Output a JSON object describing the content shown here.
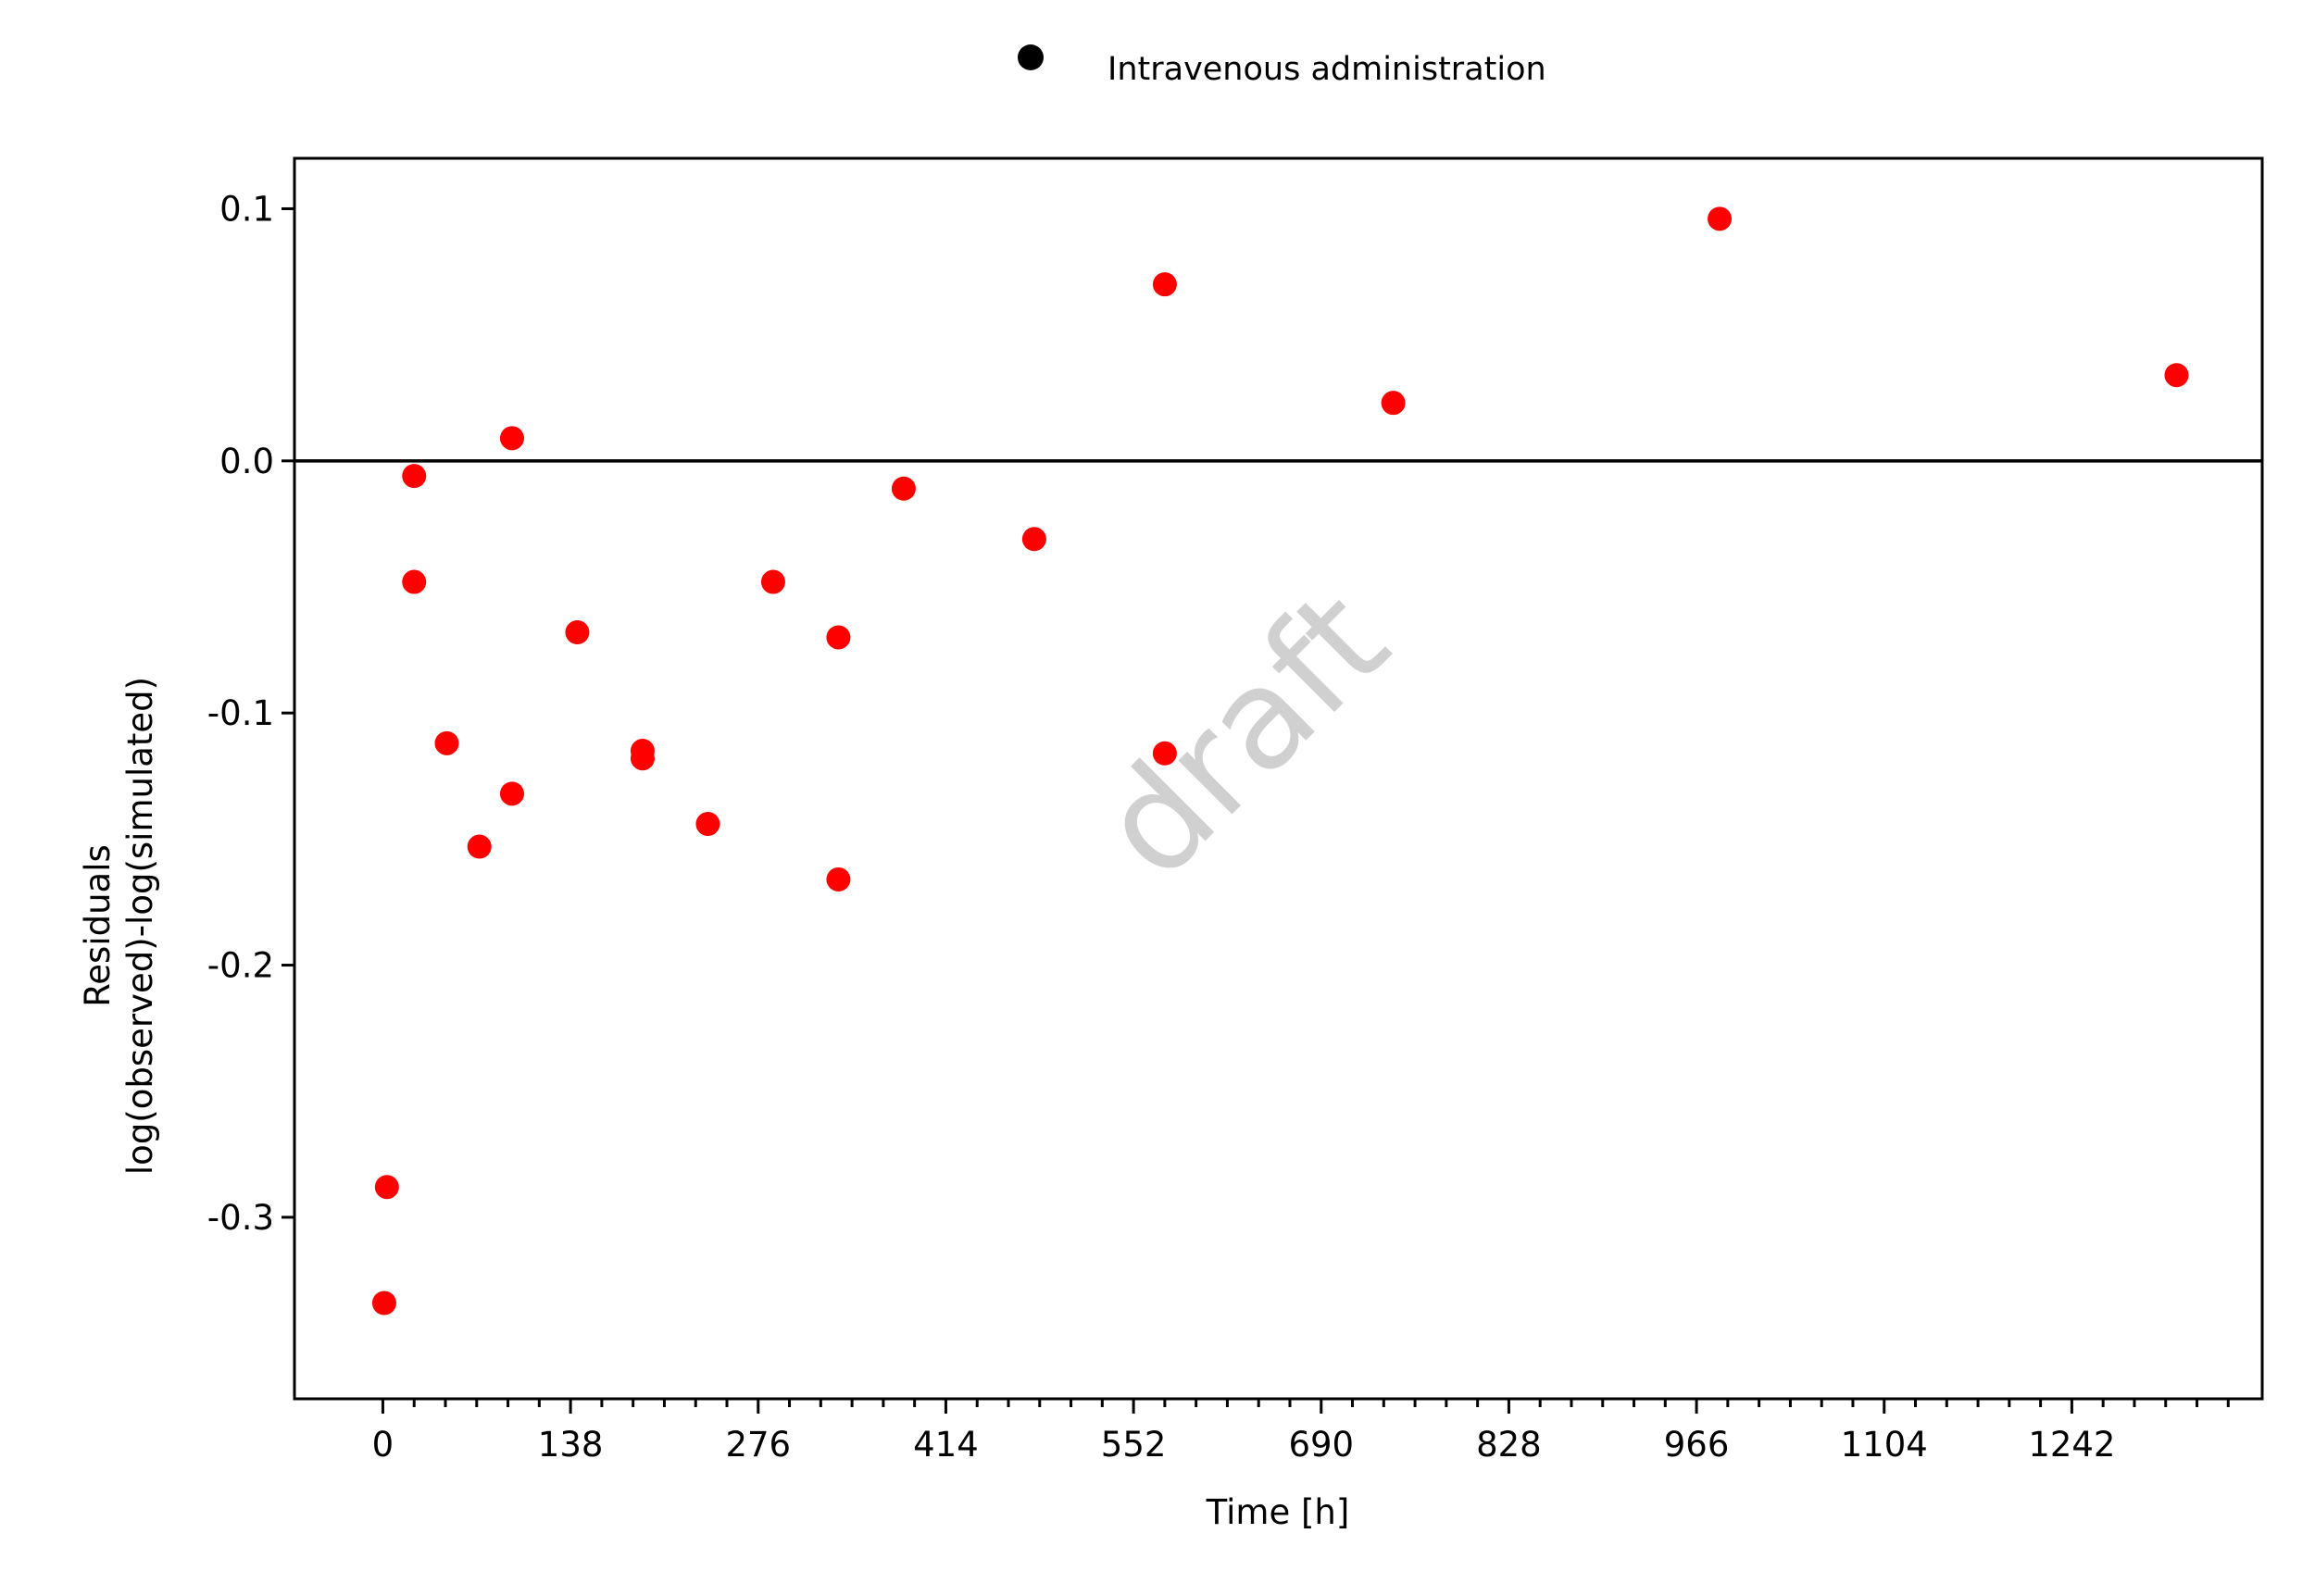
{
  "chart_data": {
    "type": "scatter",
    "title": "",
    "xlabel": "Time [h]",
    "ylabel_lines": [
      "Residuals",
      "log(observed)-log(simulated)"
    ],
    "xlim": [
      -65,
      1382
    ],
    "ylim": [
      -0.372,
      0.12
    ],
    "x_ticks": [
      0,
      138,
      276,
      414,
      552,
      690,
      828,
      966,
      1104,
      1242
    ],
    "x_tick_labels": [
      "0",
      "138",
      "276",
      "414",
      "552",
      "690",
      "828",
      "966",
      "1104",
      "1242"
    ],
    "x_minor_step": 23,
    "y_ticks": [
      0.1,
      0.0,
      -0.1,
      -0.2,
      -0.3
    ],
    "y_tick_labels": [
      "0.1",
      "0.0",
      "-0.1",
      "-0.2",
      "-0.3"
    ],
    "reference_line_y": 0,
    "grid": false,
    "legend_position": "top-center",
    "watermark": "draft",
    "series": [
      {
        "name": "Intravenous administration",
        "legend_color": "#000000",
        "point_color": "#ff0000",
        "points": [
          {
            "x": 1,
            "y": -0.334
          },
          {
            "x": 3,
            "y": -0.288
          },
          {
            "x": 23,
            "y": -0.006
          },
          {
            "x": 23,
            "y": -0.048
          },
          {
            "x": 47,
            "y": -0.112
          },
          {
            "x": 71,
            "y": -0.153
          },
          {
            "x": 95,
            "y": 0.009
          },
          {
            "x": 95,
            "y": -0.132
          },
          {
            "x": 143,
            "y": -0.068
          },
          {
            "x": 191,
            "y": -0.115
          },
          {
            "x": 191,
            "y": -0.118
          },
          {
            "x": 239,
            "y": -0.144
          },
          {
            "x": 287,
            "y": -0.048
          },
          {
            "x": 335,
            "y": -0.07
          },
          {
            "x": 335,
            "y": -0.166
          },
          {
            "x": 383,
            "y": -0.011
          },
          {
            "x": 479,
            "y": -0.031
          },
          {
            "x": 575,
            "y": 0.07
          },
          {
            "x": 575,
            "y": -0.116
          },
          {
            "x": 743,
            "y": 0.023
          },
          {
            "x": 983,
            "y": 0.096
          },
          {
            "x": 1319,
            "y": 0.034
          }
        ]
      }
    ]
  }
}
